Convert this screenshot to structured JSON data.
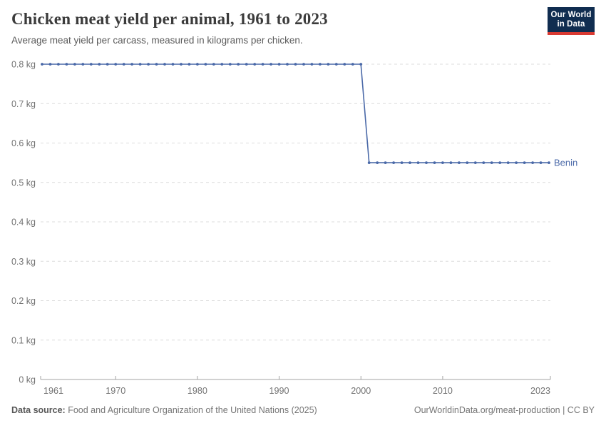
{
  "header": {
    "title": "Chicken meat yield per animal, 1961 to 2023",
    "subtitle": "Average meat yield per carcass, measured in kilograms per chicken."
  },
  "logo": {
    "line1": "Our World",
    "line2": "in Data",
    "bg_color": "#102d50",
    "bar_color": "#d93a32"
  },
  "chart_data": {
    "type": "line",
    "title": "Chicken meat yield per animal, 1961 to 2023",
    "xlabel": "",
    "ylabel": "kilograms per chicken",
    "xlim": [
      1961,
      2023
    ],
    "ylim": [
      0,
      0.8
    ],
    "grid": "horizontal-dashed",
    "legend_position": "end-of-line-label",
    "yticks": [
      0,
      0.1,
      0.2,
      0.3,
      0.4,
      0.5,
      0.6,
      0.7,
      0.8
    ],
    "ytick_labels": [
      "0 kg",
      "0.1 kg",
      "0.2 kg",
      "0.3 kg",
      "0.4 kg",
      "0.5 kg",
      "0.6 kg",
      "0.7 kg",
      "0.8 kg"
    ],
    "xticks": [
      1961,
      1970,
      1980,
      1990,
      2000,
      2010,
      2023
    ],
    "series": [
      {
        "name": "Benin",
        "color": "#4a69a8",
        "x": [
          1961,
          1962,
          1963,
          1964,
          1965,
          1966,
          1967,
          1968,
          1969,
          1970,
          1971,
          1972,
          1973,
          1974,
          1975,
          1976,
          1977,
          1978,
          1979,
          1980,
          1981,
          1982,
          1983,
          1984,
          1985,
          1986,
          1987,
          1988,
          1989,
          1990,
          1991,
          1992,
          1993,
          1994,
          1995,
          1996,
          1997,
          1998,
          1999,
          2000,
          2001,
          2002,
          2003,
          2004,
          2005,
          2006,
          2007,
          2008,
          2009,
          2010,
          2011,
          2012,
          2013,
          2014,
          2015,
          2016,
          2017,
          2018,
          2019,
          2020,
          2021,
          2022,
          2023
        ],
        "values": [
          0.8,
          0.8,
          0.8,
          0.8,
          0.8,
          0.8,
          0.8,
          0.8,
          0.8,
          0.8,
          0.8,
          0.8,
          0.8,
          0.8,
          0.8,
          0.8,
          0.8,
          0.8,
          0.8,
          0.8,
          0.8,
          0.8,
          0.8,
          0.8,
          0.8,
          0.8,
          0.8,
          0.8,
          0.8,
          0.8,
          0.8,
          0.8,
          0.8,
          0.8,
          0.8,
          0.8,
          0.8,
          0.8,
          0.8,
          0.8,
          0.55,
          0.55,
          0.55,
          0.55,
          0.55,
          0.55,
          0.55,
          0.55,
          0.55,
          0.55,
          0.55,
          0.55,
          0.55,
          0.55,
          0.55,
          0.55,
          0.55,
          0.55,
          0.55,
          0.55,
          0.55,
          0.55,
          0.55
        ]
      }
    ]
  },
  "footer": {
    "datasource_label": "Data source:",
    "datasource_text": " Food and Agriculture Organization of the United Nations (2025)",
    "credit": "OurWorldinData.org/meat-production | CC BY"
  },
  "colors": {
    "accent": "#4a69a8",
    "gridline": "#dcdcdc",
    "axis": "#a3a3a3",
    "tick_label": "#737373",
    "title_text": "#3b3b3b",
    "subtitle_text": "#5b5b5b"
  }
}
